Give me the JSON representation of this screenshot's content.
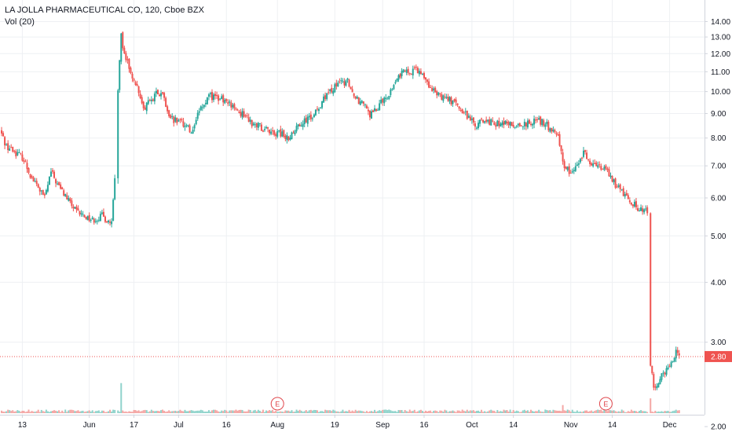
{
  "header": {
    "symbol_line": "LA JOLLA PHARMACEUTICAL CO, 120, Cboe BZX",
    "volume_line": "Vol (20)"
  },
  "colors": {
    "up": "#26a69a",
    "down": "#ef5350",
    "up_volume": "#8fd3cb",
    "down_volume": "#f4a7a5",
    "grid": "#eef0f3",
    "axis_line": "#d1d4dc",
    "price_line": "#ef5350"
  },
  "chart_data": {
    "type": "candlestick",
    "price_scale": "log",
    "y_ticks": [
      "14.00",
      "13.00",
      "12.00",
      "11.00",
      "10.00",
      "9.00",
      "8.00",
      "7.00",
      "6.00",
      "5.00",
      "4.00",
      "3.00",
      "2.00"
    ],
    "x_ticks": [
      "13",
      "Jun",
      "17",
      "Jul",
      "16",
      "Aug",
      "19",
      "Sep",
      "16",
      "Oct",
      "14",
      "Nov",
      "14",
      "Dec"
    ],
    "current_price": "2.80",
    "earnings_markers": [
      {
        "label": "E",
        "date": "Aug 1"
      },
      {
        "label": "E",
        "date": "Nov 12"
      }
    ],
    "price_path": [
      {
        "date": "May 6",
        "close": 8.3
      },
      {
        "date": "May 8",
        "close": 7.7
      },
      {
        "date": "May 13",
        "close": 7.3
      },
      {
        "date": "May 16",
        "close": 6.6
      },
      {
        "date": "May 20",
        "close": 6.0
      },
      {
        "date": "May 22",
        "close": 6.8
      },
      {
        "date": "May 24",
        "close": 6.4
      },
      {
        "date": "May 28",
        "close": 5.85
      },
      {
        "date": "May 30",
        "close": 5.6
      },
      {
        "date": "Jun 4",
        "close": 5.4
      },
      {
        "date": "Jun 7",
        "close": 5.5
      },
      {
        "date": "Jun 10",
        "close": 5.3
      },
      {
        "date": "Jun 11",
        "close": 6.5
      },
      {
        "date": "Jun 12",
        "close": 10.0
      },
      {
        "date": "Jun 13",
        "close": 13.0
      },
      {
        "date": "Jun 14",
        "close": 12.0
      },
      {
        "date": "Jun 17",
        "close": 10.6
      },
      {
        "date": "Jun 19",
        "close": 9.8
      },
      {
        "date": "Jun 20",
        "close": 9.2
      },
      {
        "date": "Jun 24",
        "close": 9.9
      },
      {
        "date": "Jun 26",
        "close": 9.8
      },
      {
        "date": "Jun 28",
        "close": 8.8
      },
      {
        "date": "Jul 2",
        "close": 8.6
      },
      {
        "date": "Jul 5",
        "close": 8.3
      },
      {
        "date": "Jul 9",
        "close": 9.5
      },
      {
        "date": "Jul 11",
        "close": 9.8
      },
      {
        "date": "Jul 15",
        "close": 9.6
      },
      {
        "date": "Jul 17",
        "close": 9.5
      },
      {
        "date": "Jul 19",
        "close": 9.1
      },
      {
        "date": "Jul 22",
        "close": 8.9
      },
      {
        "date": "Jul 24",
        "close": 8.6
      },
      {
        "date": "Jul 29",
        "close": 8.3
      },
      {
        "date": "Aug 1",
        "close": 8.2
      },
      {
        "date": "Aug 5",
        "close": 8.0
      },
      {
        "date": "Aug 7",
        "close": 8.4
      },
      {
        "date": "Aug 9",
        "close": 8.7
      },
      {
        "date": "Aug 12",
        "close": 8.8
      },
      {
        "date": "Aug 14",
        "close": 9.3
      },
      {
        "date": "Aug 16",
        "close": 9.7
      },
      {
        "date": "Aug 19",
        "close": 10.2
      },
      {
        "date": "Aug 21",
        "close": 10.4
      },
      {
        "date": "Aug 23",
        "close": 10.5
      },
      {
        "date": "Aug 26",
        "close": 9.6
      },
      {
        "date": "Aug 28",
        "close": 9.5
      },
      {
        "date": "Aug 30",
        "close": 8.9
      },
      {
        "date": "Sep 4",
        "close": 9.7
      },
      {
        "date": "Sep 6",
        "close": 10.2
      },
      {
        "date": "Sep 9",
        "close": 11.0
      },
      {
        "date": "Sep 11",
        "close": 10.9
      },
      {
        "date": "Sep 13",
        "close": 11.2
      },
      {
        "date": "Sep 16",
        "close": 10.7
      },
      {
        "date": "Sep 18",
        "close": 10.2
      },
      {
        "date": "Sep 20",
        "close": 9.9
      },
      {
        "date": "Sep 24",
        "close": 9.6
      },
      {
        "date": "Sep 26",
        "close": 9.4
      },
      {
        "date": "Sep 30",
        "close": 8.8
      },
      {
        "date": "Oct 2",
        "close": 8.5
      },
      {
        "date": "Oct 4",
        "close": 8.7
      },
      {
        "date": "Oct 8",
        "close": 8.6
      },
      {
        "date": "Oct 11",
        "close": 8.6
      },
      {
        "date": "Oct 15",
        "close": 8.5
      },
      {
        "date": "Oct 18",
        "close": 8.6
      },
      {
        "date": "Oct 22",
        "close": 8.7
      },
      {
        "date": "Oct 24",
        "close": 8.6
      },
      {
        "date": "Oct 28",
        "close": 8.0
      },
      {
        "date": "Oct 30",
        "close": 7.0
      },
      {
        "date": "Nov 1",
        "close": 6.8
      },
      {
        "date": "Nov 4",
        "close": 7.2
      },
      {
        "date": "Nov 5",
        "close": 7.5
      },
      {
        "date": "Nov 7",
        "close": 7.1
      },
      {
        "date": "Nov 12",
        "close": 6.9
      },
      {
        "date": "Nov 14",
        "close": 6.5
      },
      {
        "date": "Nov 18",
        "close": 6.1
      },
      {
        "date": "Nov 20",
        "close": 5.9
      },
      {
        "date": "Nov 22",
        "close": 5.7
      },
      {
        "date": "Nov 25",
        "close": 5.6
      },
      {
        "date": "Nov 26",
        "close": 2.7
      },
      {
        "date": "Nov 27",
        "close": 2.4
      },
      {
        "date": "Dec 2",
        "close": 2.7
      },
      {
        "date": "Dec 4",
        "close": 2.85
      },
      {
        "date": "Dec 5",
        "close": 2.8
      }
    ],
    "volume_spikes": [
      {
        "date": "Jun 11",
        "relative": 0.55
      },
      {
        "date": "Jun 12",
        "relative": 1.0
      },
      {
        "date": "Jun 13",
        "relative": 0.45
      },
      {
        "date": "Nov 26",
        "relative": 0.2
      }
    ]
  }
}
